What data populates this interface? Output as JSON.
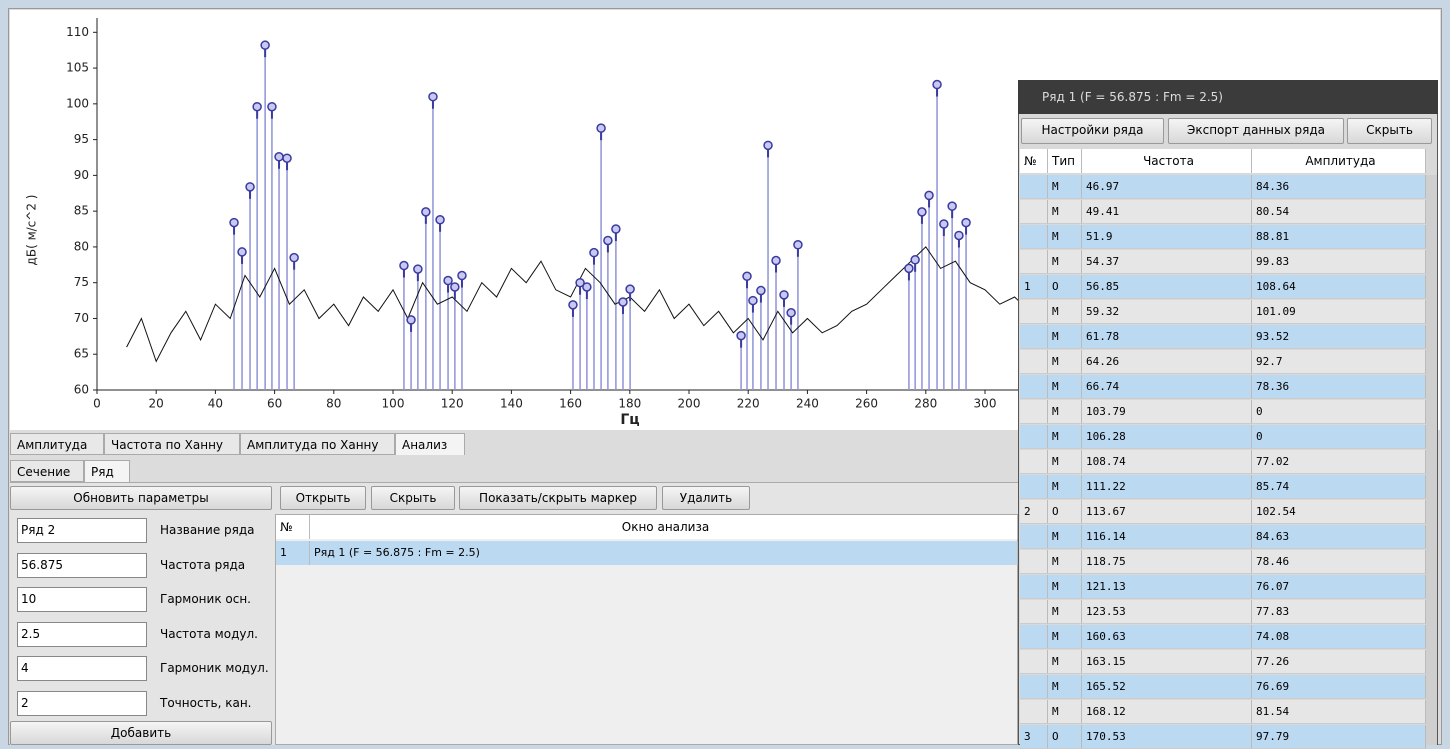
{
  "chart_data": {
    "type": "line",
    "y_label": "дБ( м/с^2 )",
    "x_label": "Гц",
    "xlim": [
      0,
      450
    ],
    "ylim": [
      60,
      112
    ],
    "xticks": [
      0,
      20,
      40,
      60,
      80,
      100,
      120,
      140,
      160,
      180,
      200,
      220,
      240,
      260,
      280,
      300
    ],
    "yticks": [
      60,
      65,
      70,
      75,
      80,
      85,
      90,
      95,
      100,
      105,
      110
    ],
    "series": [
      {
        "color": "#111111",
        "x": [
          10,
          15,
          20,
          25,
          30,
          35,
          40,
          45,
          50,
          55,
          60,
          65,
          70,
          75,
          80,
          85,
          90,
          95,
          100,
          105,
          110,
          115,
          120,
          125,
          130,
          135,
          140,
          145,
          150,
          155,
          160,
          165,
          170,
          175,
          180,
          185,
          190,
          195,
          200,
          205,
          210,
          215,
          220,
          225,
          230,
          235,
          240,
          245,
          250,
          255,
          260,
          265,
          270,
          275,
          280,
          285,
          290,
          295,
          300,
          305,
          310,
          315
        ],
        "values": [
          66,
          70,
          64,
          68,
          71,
          67,
          72,
          70,
          76,
          73,
          77,
          72,
          74,
          70,
          72,
          69,
          73,
          71,
          74,
          70,
          75,
          72,
          73,
          71,
          75,
          73,
          77,
          75,
          78,
          74,
          73,
          77,
          75,
          72,
          73,
          71,
          74,
          70,
          72,
          69,
          71,
          68,
          70,
          67,
          71,
          68,
          70,
          68,
          69,
          71,
          72,
          74,
          76,
          78,
          80,
          77,
          78,
          75,
          74,
          72,
          73,
          71
        ]
      }
    ],
    "markers": {
      "color": "#3a3aa0",
      "stem_color": "#8f93d8",
      "x": [
        46.3,
        49,
        51.7,
        54.1,
        56.8,
        59.1,
        61.5,
        64.2,
        66.6,
        103.7,
        106.1,
        108.4,
        111.1,
        113.5,
        115.9,
        118.6,
        120.9,
        123.3,
        160.8,
        163.2,
        165.5,
        167.9,
        170.3,
        172.6,
        175.3,
        177.7,
        180.1,
        217.6,
        219.6,
        221.6,
        224.3,
        226.7,
        229.4,
        232.1,
        234.5,
        236.8,
        274.3,
        276.4,
        278.7,
        281.1,
        283.8,
        286.1,
        288.9,
        291.2,
        293.6
      ],
      "values": [
        83.4,
        79.3,
        88.4,
        99.6,
        108.2,
        99.6,
        92.6,
        92.4,
        78.5,
        77.4,
        69.8,
        76.9,
        84.9,
        101,
        83.8,
        75.3,
        74.4,
        76,
        71.9,
        75,
        74.4,
        79.2,
        96.6,
        80.9,
        82.5,
        72.3,
        74.1,
        67.6,
        75.9,
        72.5,
        73.9,
        94.2,
        78.1,
        73.3,
        70.8,
        80.3,
        77,
        78.2,
        84.9,
        87.2,
        102.7,
        83.2,
        85.7,
        81.6,
        83.4
      ]
    }
  },
  "tabs": [
    "Амплитуда",
    "Частота по Ханну",
    "Амплитуда по Ханну",
    "Анализ"
  ],
  "subtabs": [
    "Сечение",
    "Ряд"
  ],
  "left_panel": {
    "update_button": "Обновить параметры",
    "add_button": "Добавить",
    "fields": [
      [
        "Ряд 2",
        "Название ряда"
      ],
      [
        "56.875",
        "Частота ряда"
      ],
      [
        "10",
        "Гармоник осн."
      ],
      [
        "2.5",
        "Частота модул."
      ],
      [
        "4",
        "Гармоник модул."
      ],
      [
        "2",
        "Точность, кан."
      ]
    ]
  },
  "analysis": {
    "buttons": [
      "Открыть",
      "Скрыть",
      "Показать/скрыть маркер",
      "Удалить"
    ],
    "headers": [
      "№",
      "Окно анализа"
    ],
    "rows": [
      [
        "1",
        "Ряд 1 (F = 56.875 : Fm = 2.5)"
      ]
    ]
  },
  "window": {
    "title": "Ряд 1 (F = 56.875 : Fm = 2.5)",
    "buttons": [
      "Настройки ряда",
      "Экспорт данных ряда",
      "Скрыть"
    ],
    "headers": [
      "№",
      "Тип",
      "Частота",
      "Амплитуда"
    ],
    "rows": [
      [
        "",
        "М",
        "46.97",
        "84.36"
      ],
      [
        "",
        "М",
        "49.41",
        "80.54"
      ],
      [
        "",
        "М",
        "51.9",
        "88.81"
      ],
      [
        "",
        "М",
        "54.37",
        "99.83"
      ],
      [
        "1",
        "О",
        "56.85",
        "108.64"
      ],
      [
        "",
        "М",
        "59.32",
        "101.09"
      ],
      [
        "",
        "М",
        "61.78",
        "93.52"
      ],
      [
        "",
        "М",
        "64.26",
        "92.7"
      ],
      [
        "",
        "М",
        "66.74",
        "78.36"
      ],
      [
        "",
        "М",
        "103.79",
        "0"
      ],
      [
        "",
        "М",
        "106.28",
        "0"
      ],
      [
        "",
        "М",
        "108.74",
        "77.02"
      ],
      [
        "",
        "М",
        "111.22",
        "85.74"
      ],
      [
        "2",
        "О",
        "113.67",
        "102.54"
      ],
      [
        "",
        "М",
        "116.14",
        "84.63"
      ],
      [
        "",
        "М",
        "118.75",
        "78.46"
      ],
      [
        "",
        "М",
        "121.13",
        "76.07"
      ],
      [
        "",
        "М",
        "123.53",
        "77.83"
      ],
      [
        "",
        "М",
        "160.63",
        "74.08"
      ],
      [
        "",
        "М",
        "163.15",
        "77.26"
      ],
      [
        "",
        "М",
        "165.52",
        "76.69"
      ],
      [
        "",
        "М",
        "168.12",
        "81.54"
      ],
      [
        "3",
        "О",
        "170.53",
        "97.79"
      ]
    ]
  }
}
